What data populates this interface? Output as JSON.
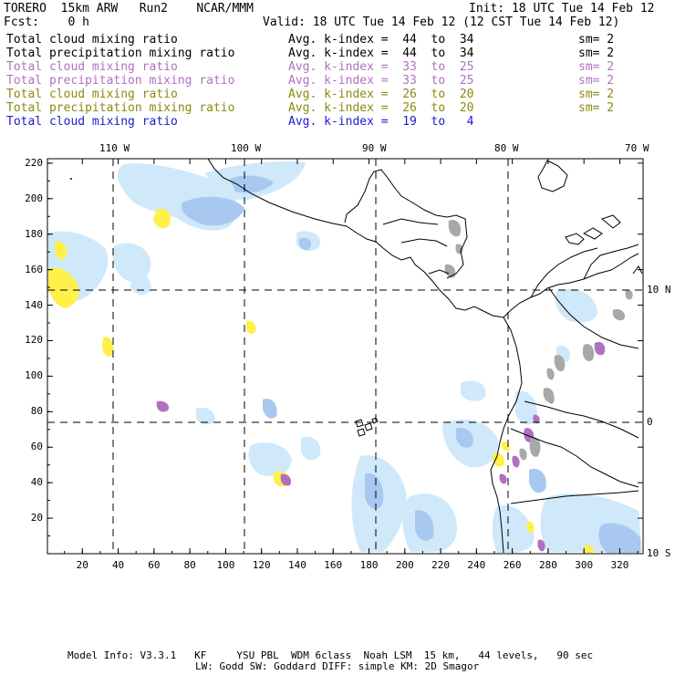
{
  "header": {
    "title_left": "TORERO  15km ARW   Run2    NCAR/MMM",
    "init": "Init: 18 UTC Tue 14 Feb 12",
    "fcst": "Fcst:    0 h",
    "valid": "Valid: 18 UTC Tue 14 Feb 12 (12 CST Tue 14 Feb 12)"
  },
  "legend": [
    {
      "field": "Total cloud mixing ratio",
      "kidx": "Avg. k-index =  44  to  34",
      "sm": "sm= 2",
      "color": "#000000"
    },
    {
      "field": "Total precipitation mixing ratio",
      "kidx": "Avg. k-index =  44  to  34",
      "sm": "sm= 2",
      "color": "#000000"
    },
    {
      "field": "Total cloud mixing ratio",
      "kidx": "Avg. k-index =  33  to  25",
      "sm": "sm= 2",
      "color": "#b070c0"
    },
    {
      "field": "Total precipitation mixing ratio",
      "kidx": "Avg. k-index =  33  to  25",
      "sm": "sm= 2",
      "color": "#b070c0"
    },
    {
      "field": "Total cloud mixing ratio",
      "kidx": "Avg. k-index =  26  to  20",
      "sm": "sm= 2",
      "color": "#8a8a10"
    },
    {
      "field": "Total precipitation mixing ratio",
      "kidx": "Avg. k-index =  26  to  20",
      "sm": "sm= 2",
      "color": "#8a8a10"
    },
    {
      "field": "Total cloud mixing ratio",
      "kidx": "Avg. k-index =  19  to   4",
      "sm": "",
      "color": "#1a1ad0"
    }
  ],
  "lon_labels": [
    "110 W",
    "100 W",
    "90 W",
    "80 W",
    "70 W"
  ],
  "lat_labels": [
    "10 N",
    "0",
    "10 S"
  ],
  "y_ticks": [
    "20",
    "40",
    "60",
    "80",
    "100",
    "120",
    "140",
    "160",
    "180",
    "200",
    "220"
  ],
  "x_ticks": [
    "20",
    "40",
    "60",
    "80",
    "100",
    "120",
    "140",
    "160",
    "180",
    "200",
    "220",
    "240",
    "260",
    "280",
    "300",
    "320"
  ],
  "footer": {
    "line1": "Model Info: V3.3.1   KF     YSU PBL  WDM 6class  Noah LSM  15 km,   44 levels,   90 sec",
    "line2": "LW: Godd SW: Goddard DIFF: simple KM: 2D Smagor"
  },
  "colors": {
    "cloud_light": "#cfe8fa",
    "cloud_mid": "#a8c8f0",
    "yellow": "#fff04a",
    "purple": "#b070c0",
    "gray": "#a8a8a8"
  }
}
